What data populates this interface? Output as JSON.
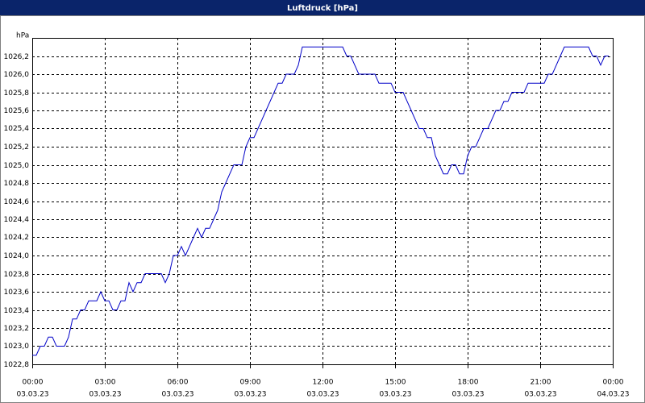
{
  "chart_data": {
    "type": "line",
    "title": "Luftdruck [hPa]",
    "y_unit": "hPa",
    "xlim": [
      0,
      1440
    ],
    "xticks": [
      {
        "value": 0,
        "label": "00:00"
      },
      {
        "value": 180,
        "label": "03:00"
      },
      {
        "value": 360,
        "label": "06:00"
      },
      {
        "value": 540,
        "label": "09:00"
      },
      {
        "value": 720,
        "label": "12:00"
      },
      {
        "value": 900,
        "label": "15:00"
      },
      {
        "value": 1080,
        "label": "18:00"
      },
      {
        "value": 1260,
        "label": "21:00"
      },
      {
        "value": 1440,
        "label": "00:00"
      }
    ],
    "xtick_dates": [
      "03.03.23",
      "03.03.23",
      "03.03.23",
      "03.03.23",
      "03.03.23",
      "03.03.23",
      "03.03.23",
      "03.03.23",
      "04.03.23"
    ],
    "ylim": [
      1022.8,
      1026.4
    ],
    "yticks": [
      {
        "value": 1022.8,
        "label": "1022,8"
      },
      {
        "value": 1023.0,
        "label": "1023,0"
      },
      {
        "value": 1023.2,
        "label": "1023,2"
      },
      {
        "value": 1023.4,
        "label": "1023,4"
      },
      {
        "value": 1023.6,
        "label": "1023,6"
      },
      {
        "value": 1023.8,
        "label": "1023,8"
      },
      {
        "value": 1024.0,
        "label": "1024,0"
      },
      {
        "value": 1024.2,
        "label": "1024,2"
      },
      {
        "value": 1024.4,
        "label": "1024,4"
      },
      {
        "value": 1024.6,
        "label": "1024,6"
      },
      {
        "value": 1024.8,
        "label": "1024,8"
      },
      {
        "value": 1025.0,
        "label": "1025,0"
      },
      {
        "value": 1025.2,
        "label": "1025,2"
      },
      {
        "value": 1025.4,
        "label": "1025,4"
      },
      {
        "value": 1025.6,
        "label": "1025,6"
      },
      {
        "value": 1025.8,
        "label": "1025,8"
      },
      {
        "value": 1026.0,
        "label": "1026,0"
      },
      {
        "value": 1026.2,
        "label": "1026,2"
      }
    ],
    "grid": true,
    "color": "#0000c8",
    "x": [
      0,
      10,
      20,
      30,
      40,
      50,
      60,
      80,
      90,
      100,
      110,
      120,
      130,
      140,
      160,
      170,
      180,
      190,
      200,
      210,
      220,
      230,
      240,
      250,
      260,
      270,
      280,
      320,
      330,
      340,
      350,
      360,
      370,
      380,
      390,
      400,
      410,
      420,
      430,
      440,
      450,
      460,
      470,
      480,
      490,
      500,
      520,
      530,
      540,
      550,
      560,
      570,
      580,
      590,
      600,
      610,
      620,
      630,
      650,
      660,
      670,
      770,
      780,
      790,
      800,
      810,
      850,
      860,
      890,
      900,
      920,
      930,
      940,
      950,
      960,
      970,
      980,
      990,
      1000,
      1010,
      1020,
      1030,
      1040,
      1050,
      1060,
      1070,
      1080,
      1090,
      1100,
      1110,
      1120,
      1130,
      1140,
      1150,
      1160,
      1170,
      1180,
      1190,
      1220,
      1230,
      1270,
      1280,
      1290,
      1300,
      1310,
      1320,
      1380,
      1390,
      1400,
      1410,
      1420,
      1430
    ],
    "values": [
      1022.9,
      1022.9,
      1023.0,
      1023.0,
      1023.1,
      1023.1,
      1023.0,
      1023.0,
      1023.1,
      1023.3,
      1023.3,
      1023.4,
      1023.4,
      1023.5,
      1023.5,
      1023.6,
      1023.5,
      1023.5,
      1023.4,
      1023.4,
      1023.5,
      1023.5,
      1023.7,
      1023.6,
      1023.7,
      1023.7,
      1023.8,
      1023.8,
      1023.7,
      1023.8,
      1024.0,
      1024.0,
      1024.1,
      1024.0,
      1024.1,
      1024.2,
      1024.3,
      1024.2,
      1024.3,
      1024.3,
      1024.4,
      1024.5,
      1024.7,
      1024.8,
      1024.9,
      1025.0,
      1025.0,
      1025.2,
      1025.3,
      1025.3,
      1025.4,
      1025.5,
      1025.6,
      1025.7,
      1025.8,
      1025.9,
      1025.9,
      1026.0,
      1026.0,
      1026.1,
      1026.3,
      1026.3,
      1026.2,
      1026.2,
      1026.1,
      1026.0,
      1026.0,
      1025.9,
      1025.9,
      1025.8,
      1025.8,
      1025.7,
      1025.6,
      1025.5,
      1025.4,
      1025.4,
      1025.3,
      1025.3,
      1025.1,
      1025.0,
      1024.9,
      1024.9,
      1025.0,
      1025.0,
      1024.9,
      1024.9,
      1025.1,
      1025.2,
      1025.2,
      1025.3,
      1025.4,
      1025.4,
      1025.5,
      1025.6,
      1025.6,
      1025.7,
      1025.7,
      1025.8,
      1025.8,
      1025.9,
      1025.9,
      1026.0,
      1026.0,
      1026.1,
      1026.2,
      1026.3,
      1026.3,
      1026.2,
      1026.2,
      1026.1,
      1026.2,
      1026.2
    ]
  }
}
